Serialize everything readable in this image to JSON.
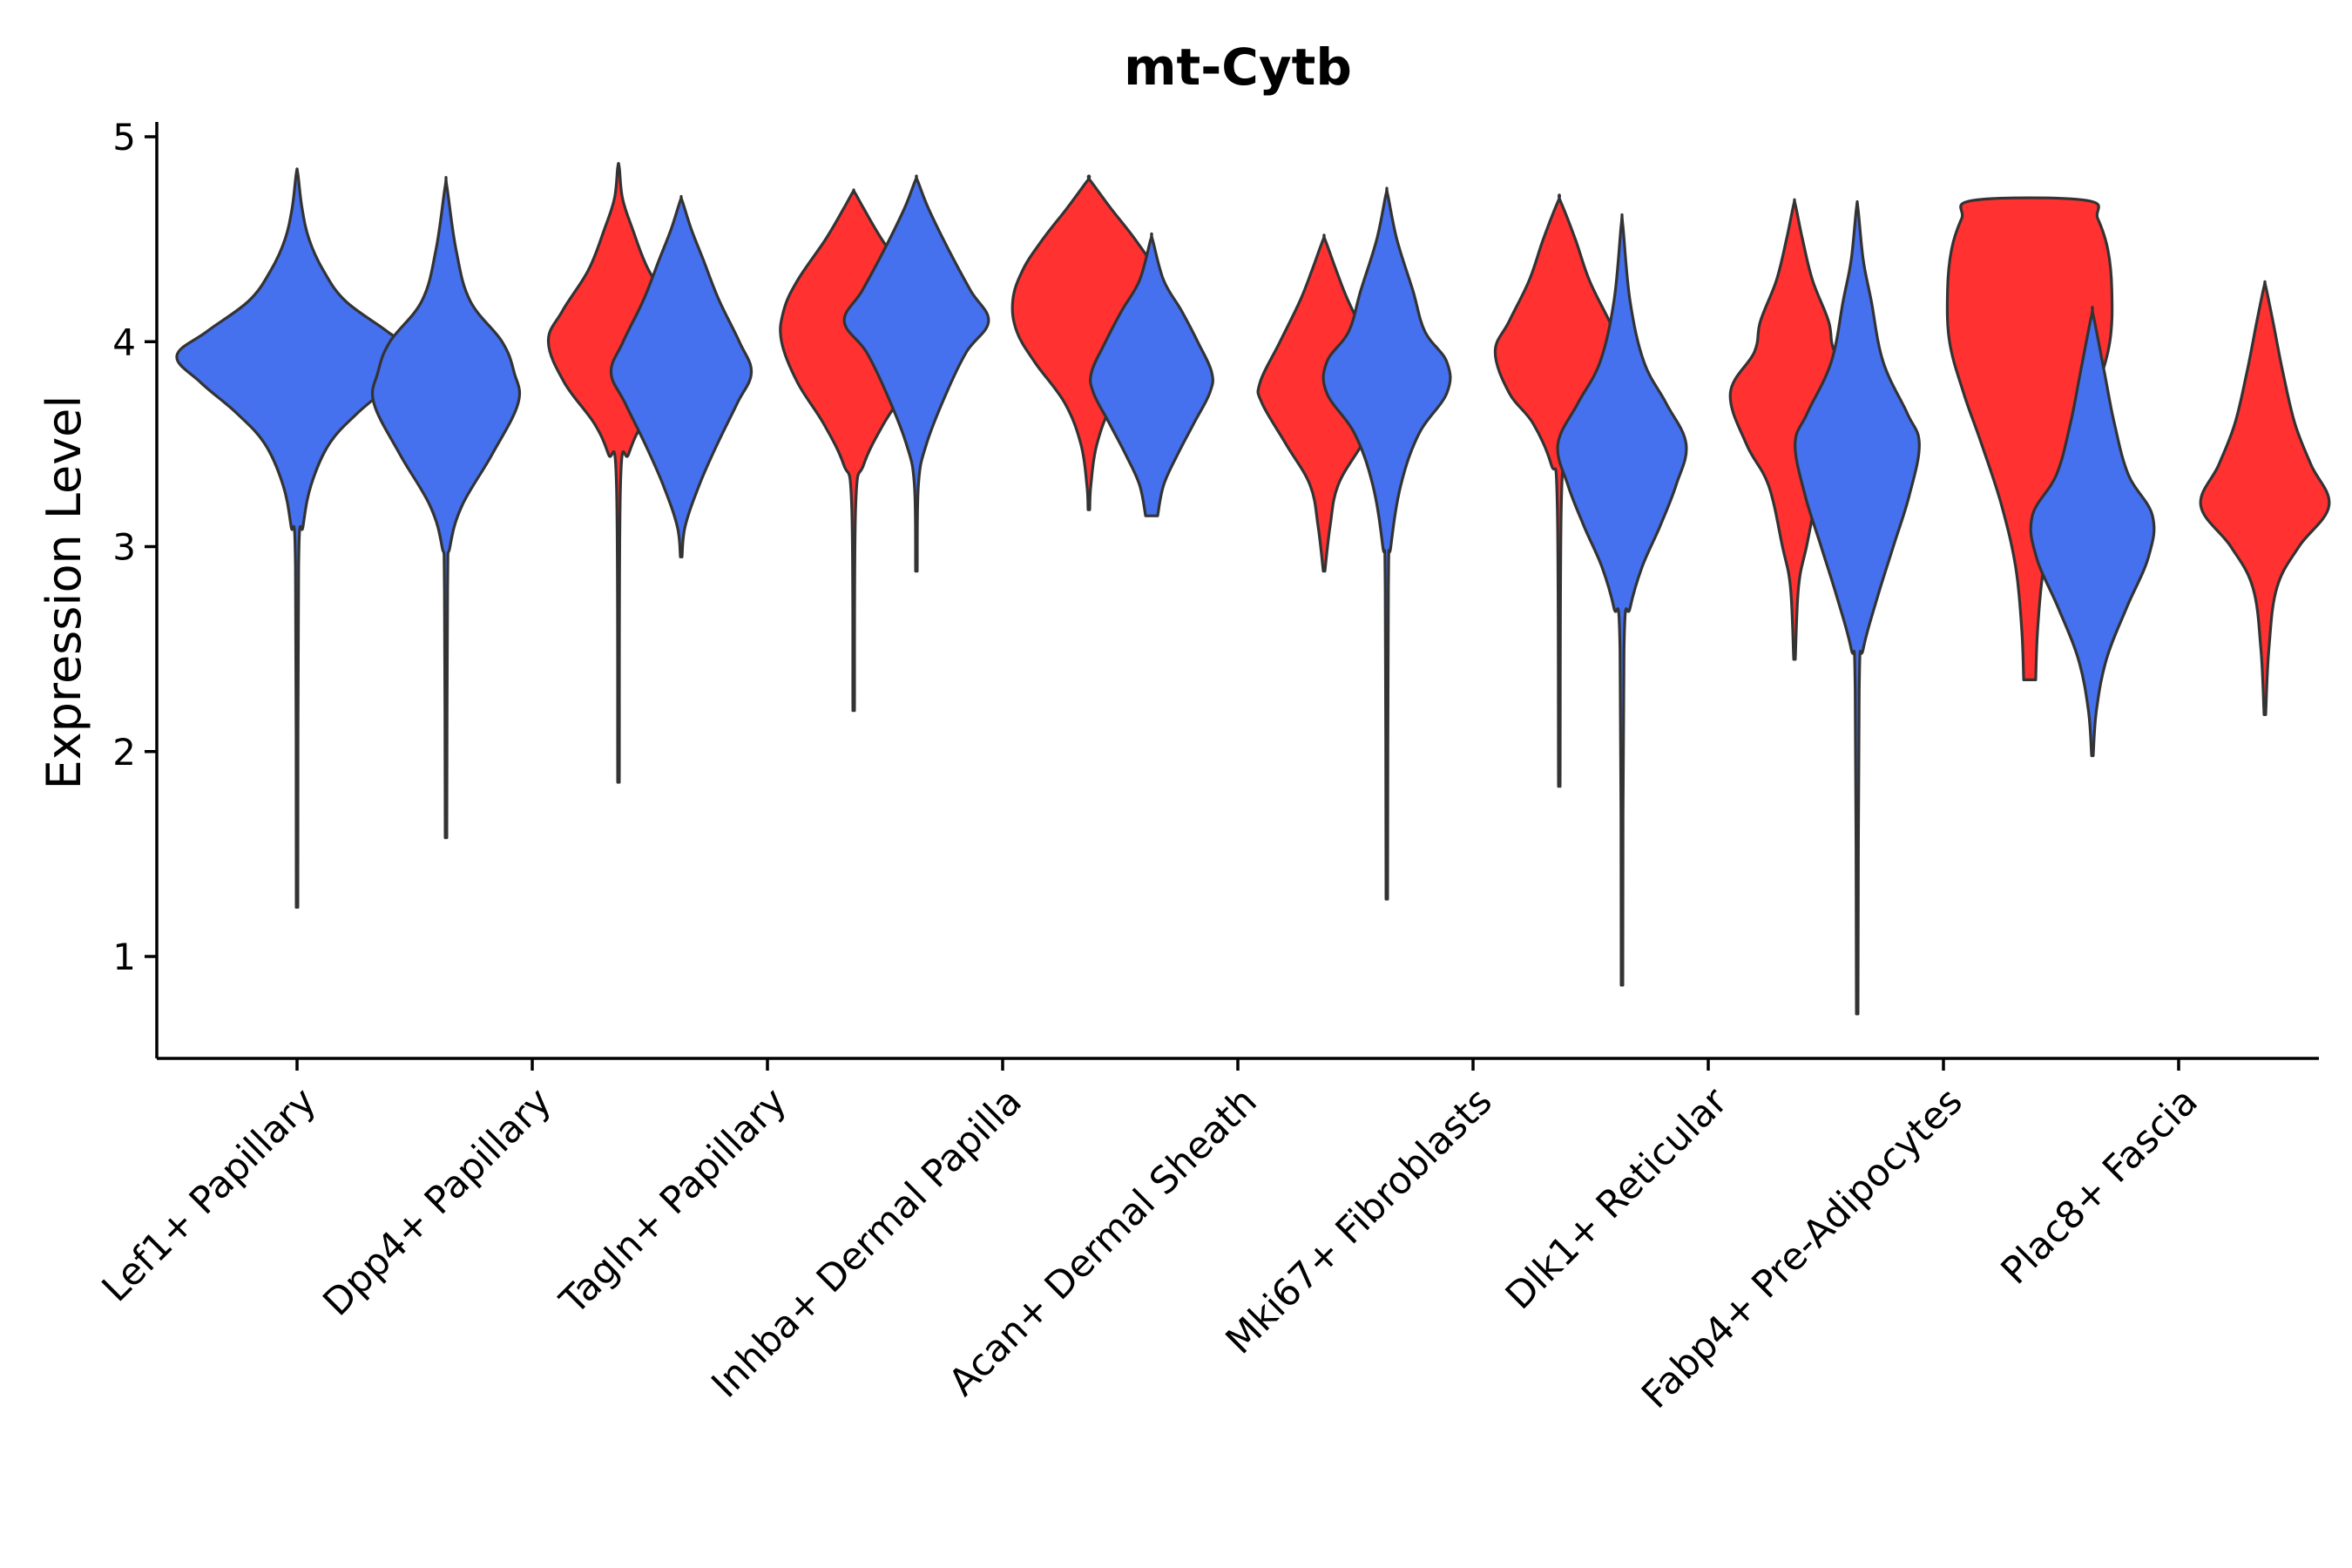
{
  "chart_data": {
    "type": "violin",
    "title": "mt-Cytb",
    "xlabel": "",
    "ylabel": "Expression Level",
    "ylim": [
      0.5,
      5.05
    ],
    "yticks": [
      1,
      2,
      3,
      4,
      5
    ],
    "grid": false,
    "legend": "none",
    "series_colors": {
      "group_a": "#4570ee",
      "group_b": "#ff3131"
    },
    "categories": [
      "Lef1+ Papillary",
      "Dpp4+ Papillary",
      "Tagln+ Papillary",
      "Inhba+ Dermal Papilla",
      "Acan+ Dermal Sheath",
      "Mki67+ Fibroblasts",
      "Dlk1+ Reticular",
      "Fabp4+ Pre-Adipocytes",
      "Plac8+ Fascia"
    ],
    "violins": [
      {
        "category": "Lef1+ Papillary",
        "group": "group_a",
        "min": 1.24,
        "max": 4.82,
        "shape": [
          [
            1.24,
            0.004
          ],
          [
            2.9,
            0.008
          ],
          [
            3.1,
            0.03
          ],
          [
            3.3,
            0.07
          ],
          [
            3.5,
            0.16
          ],
          [
            3.65,
            0.3
          ],
          [
            3.8,
            0.48
          ],
          [
            3.93,
            0.6
          ],
          [
            4.05,
            0.45
          ],
          [
            4.2,
            0.24
          ],
          [
            4.35,
            0.13
          ],
          [
            4.5,
            0.06
          ],
          [
            4.65,
            0.025
          ],
          [
            4.82,
            0.004
          ]
        ]
      },
      {
        "category": "Dpp4+ Papillary",
        "group": "group_a",
        "min": 1.58,
        "max": 4.76,
        "shape": [
          [
            1.58,
            0.004
          ],
          [
            2.8,
            0.008
          ],
          [
            3.0,
            0.02
          ],
          [
            3.2,
            0.08
          ],
          [
            3.45,
            0.23
          ],
          [
            3.7,
            0.36
          ],
          [
            3.85,
            0.34
          ],
          [
            4.0,
            0.28
          ],
          [
            4.2,
            0.12
          ],
          [
            4.45,
            0.05
          ],
          [
            4.76,
            0.004
          ]
        ]
      },
      {
        "category": "Dpp4+ Papillary",
        "group": "group_b",
        "min": 1.85,
        "max": 4.85,
        "shape": [
          [
            1.85,
            0.004
          ],
          [
            3.3,
            0.01
          ],
          [
            3.45,
            0.05
          ],
          [
            3.6,
            0.12
          ],
          [
            3.8,
            0.27
          ],
          [
            4.0,
            0.35
          ],
          [
            4.15,
            0.28
          ],
          [
            4.35,
            0.15
          ],
          [
            4.55,
            0.07
          ],
          [
            4.7,
            0.02
          ],
          [
            4.85,
            0.004
          ]
        ]
      },
      {
        "category": "Tagln+ Papillary",
        "group": "group_a",
        "min": 2.95,
        "max": 4.69,
        "shape": [
          [
            2.95,
            0.004
          ],
          [
            3.1,
            0.02
          ],
          [
            3.3,
            0.09
          ],
          [
            3.5,
            0.18
          ],
          [
            3.7,
            0.28
          ],
          [
            3.85,
            0.35
          ],
          [
            4.0,
            0.29
          ],
          [
            4.2,
            0.19
          ],
          [
            4.4,
            0.11
          ],
          [
            4.55,
            0.05
          ],
          [
            4.69,
            0.004
          ]
        ]
      },
      {
        "category": "Tagln+ Papillary",
        "group": "group_b",
        "min": 2.2,
        "max": 4.73,
        "shape": [
          [
            2.2,
            0.004
          ],
          [
            3.2,
            0.01
          ],
          [
            3.4,
            0.05
          ],
          [
            3.6,
            0.15
          ],
          [
            3.8,
            0.28
          ],
          [
            4.0,
            0.36
          ],
          [
            4.15,
            0.35
          ],
          [
            4.3,
            0.28
          ],
          [
            4.5,
            0.14
          ],
          [
            4.65,
            0.05
          ],
          [
            4.73,
            0.004
          ]
        ]
      },
      {
        "category": "Inhba+ Dermal Papilla",
        "group": "group_a",
        "min": 2.88,
        "max": 4.79,
        "shape": [
          [
            2.88,
            0.004
          ],
          [
            3.3,
            0.01
          ],
          [
            3.5,
            0.05
          ],
          [
            3.75,
            0.15
          ],
          [
            3.95,
            0.25
          ],
          [
            4.1,
            0.36
          ],
          [
            4.25,
            0.27
          ],
          [
            4.45,
            0.16
          ],
          [
            4.65,
            0.06
          ],
          [
            4.79,
            0.004
          ]
        ]
      },
      {
        "category": "Inhba+ Dermal Papilla",
        "group": "group_b",
        "min": 3.18,
        "max": 4.79,
        "shape": [
          [
            3.18,
            0.004
          ],
          [
            3.3,
            0.01
          ],
          [
            3.5,
            0.04
          ],
          [
            3.7,
            0.12
          ],
          [
            3.9,
            0.27
          ],
          [
            4.05,
            0.36
          ],
          [
            4.2,
            0.38
          ],
          [
            4.35,
            0.33
          ],
          [
            4.5,
            0.23
          ],
          [
            4.65,
            0.11
          ],
          [
            4.79,
            0.004
          ]
        ]
      },
      {
        "category": "Acan+ Dermal Sheath",
        "group": "group_a",
        "min": 3.15,
        "max": 4.5,
        "shape": [
          [
            3.15,
            0.03
          ],
          [
            3.3,
            0.06
          ],
          [
            3.45,
            0.13
          ],
          [
            3.6,
            0.21
          ],
          [
            3.75,
            0.29
          ],
          [
            3.85,
            0.3
          ],
          [
            4.0,
            0.23
          ],
          [
            4.15,
            0.15
          ],
          [
            4.3,
            0.06
          ],
          [
            4.5,
            0.004
          ]
        ]
      },
      {
        "category": "Acan+ Dermal Sheath",
        "group": "group_b",
        "min": 2.88,
        "max": 4.5,
        "shape": [
          [
            2.88,
            0.004
          ],
          [
            3.1,
            0.03
          ],
          [
            3.3,
            0.07
          ],
          [
            3.5,
            0.19
          ],
          [
            3.7,
            0.31
          ],
          [
            3.8,
            0.32
          ],
          [
            4.0,
            0.22
          ],
          [
            4.2,
            0.12
          ],
          [
            4.35,
            0.06
          ],
          [
            4.5,
            0.004
          ]
        ]
      },
      {
        "category": "Mki67+ Fibroblasts",
        "group": "group_a",
        "min": 1.28,
        "max": 4.72,
        "shape": [
          [
            1.28,
            0.004
          ],
          [
            2.8,
            0.008
          ],
          [
            3.0,
            0.02
          ],
          [
            3.3,
            0.07
          ],
          [
            3.55,
            0.16
          ],
          [
            3.75,
            0.3
          ],
          [
            3.9,
            0.3
          ],
          [
            4.05,
            0.19
          ],
          [
            4.25,
            0.13
          ],
          [
            4.5,
            0.05
          ],
          [
            4.72,
            0.004
          ]
        ]
      },
      {
        "category": "Mki67+ Fibroblasts",
        "group": "group_b",
        "min": 1.83,
        "max": 4.69,
        "shape": [
          [
            1.83,
            0.004
          ],
          [
            3.2,
            0.01
          ],
          [
            3.4,
            0.04
          ],
          [
            3.6,
            0.13
          ],
          [
            3.75,
            0.25
          ],
          [
            3.95,
            0.32
          ],
          [
            4.1,
            0.25
          ],
          [
            4.3,
            0.15
          ],
          [
            4.5,
            0.08
          ],
          [
            4.69,
            0.004
          ]
        ]
      },
      {
        "category": "Dlk1+ Reticular",
        "group": "group_a",
        "min": 0.86,
        "max": 4.57,
        "shape": [
          [
            0.86,
            0.004
          ],
          [
            2.5,
            0.01
          ],
          [
            2.7,
            0.04
          ],
          [
            2.9,
            0.1
          ],
          [
            3.1,
            0.19
          ],
          [
            3.3,
            0.27
          ],
          [
            3.5,
            0.32
          ],
          [
            3.7,
            0.22
          ],
          [
            3.9,
            0.11
          ],
          [
            4.2,
            0.04
          ],
          [
            4.57,
            0.004
          ]
        ]
      },
      {
        "category": "Dlk1+ Reticular",
        "group": "group_b",
        "min": 2.45,
        "max": 4.67,
        "shape": [
          [
            2.45,
            0.004
          ],
          [
            2.8,
            0.02
          ],
          [
            3.0,
            0.06
          ],
          [
            3.3,
            0.13
          ],
          [
            3.5,
            0.24
          ],
          [
            3.75,
            0.32
          ],
          [
            3.95,
            0.2
          ],
          [
            4.1,
            0.17
          ],
          [
            4.3,
            0.09
          ],
          [
            4.5,
            0.04
          ],
          [
            4.67,
            0.004
          ]
        ]
      },
      {
        "category": "Fabp4+ Pre-Adipocytes",
        "group": "group_a",
        "min": 0.72,
        "max": 4.65,
        "shape": [
          [
            0.72,
            0.004
          ],
          [
            2.3,
            0.01
          ],
          [
            2.5,
            0.03
          ],
          [
            2.75,
            0.1
          ],
          [
            3.0,
            0.18
          ],
          [
            3.25,
            0.26
          ],
          [
            3.5,
            0.31
          ],
          [
            3.65,
            0.25
          ],
          [
            3.9,
            0.13
          ],
          [
            4.2,
            0.07
          ],
          [
            4.4,
            0.03
          ],
          [
            4.65,
            0.004
          ]
        ]
      },
      {
        "category": "Fabp4+ Pre-Adipocytes",
        "group": "group_b",
        "min": 2.35,
        "max": 4.69,
        "shape": [
          [
            2.35,
            0.03
          ],
          [
            2.6,
            0.04
          ],
          [
            2.9,
            0.07
          ],
          [
            3.2,
            0.14
          ],
          [
            3.5,
            0.24
          ],
          [
            3.75,
            0.33
          ],
          [
            4.0,
            0.4
          ],
          [
            4.25,
            0.41
          ],
          [
            4.45,
            0.39
          ],
          [
            4.6,
            0.34
          ],
          [
            4.69,
            0.28
          ]
        ]
      },
      {
        "category": "Plac8+ Fascia",
        "group": "group_a",
        "min": 1.98,
        "max": 4.13,
        "shape": [
          [
            1.98,
            0.004
          ],
          [
            2.2,
            0.02
          ],
          [
            2.45,
            0.07
          ],
          [
            2.7,
            0.17
          ],
          [
            2.95,
            0.28
          ],
          [
            3.15,
            0.3
          ],
          [
            3.35,
            0.18
          ],
          [
            3.6,
            0.11
          ],
          [
            3.85,
            0.06
          ],
          [
            4.13,
            0.004
          ]
        ]
      },
      {
        "category": "Plac8+ Fascia",
        "group": "group_b",
        "min": 2.18,
        "max": 4.27,
        "shape": [
          [
            2.18,
            0.004
          ],
          [
            2.5,
            0.02
          ],
          [
            2.8,
            0.06
          ],
          [
            3.0,
            0.17
          ],
          [
            3.2,
            0.32
          ],
          [
            3.4,
            0.23
          ],
          [
            3.6,
            0.15
          ],
          [
            3.85,
            0.09
          ],
          [
            4.1,
            0.04
          ],
          [
            4.27,
            0.004
          ]
        ]
      }
    ]
  }
}
